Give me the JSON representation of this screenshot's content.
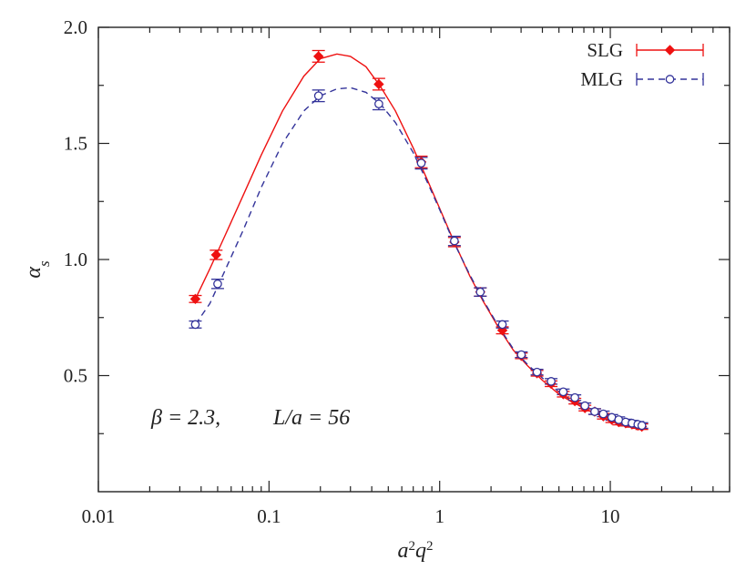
{
  "chart_data": {
    "type": "scatter",
    "title": "",
    "xlabel": "a²q²",
    "ylabel": "αs",
    "xscale": "log",
    "xlim": [
      0.01,
      50
    ],
    "ylim": [
      0.0,
      2.0
    ],
    "xticks": [
      {
        "value": 0.01,
        "label": "0.01"
      },
      {
        "value": 0.1,
        "label": "0.1"
      },
      {
        "value": 1,
        "label": "1"
      },
      {
        "value": 10,
        "label": "10"
      }
    ],
    "yticks": [
      {
        "value": 0.5,
        "label": "0.5"
      },
      {
        "value": 1.0,
        "label": "1.0"
      },
      {
        "value": 1.5,
        "label": "1.5"
      },
      {
        "value": 2.0,
        "label": "2.0"
      }
    ],
    "annotation": {
      "beta": "β = 2.3,",
      "size": "L/a = 56"
    },
    "legend_position": "top-right",
    "series": [
      {
        "name": "SLG",
        "color": "#ee1111",
        "marker": "filled-diamond",
        "line": "solid",
        "x": [
          0.037,
          0.049,
          0.195,
          0.44,
          0.78,
          1.22,
          1.73,
          2.33,
          3.01,
          3.72,
          4.5,
          5.3,
          6.2,
          7.1,
          8.1,
          9.1,
          10.2,
          11.2,
          12.3,
          13.4,
          14.5,
          15.3
        ],
        "y": [
          0.83,
          1.02,
          1.875,
          1.755,
          1.42,
          1.075,
          0.86,
          0.695,
          0.585,
          0.51,
          0.465,
          0.42,
          0.39,
          0.36,
          0.345,
          0.325,
          0.31,
          0.3,
          0.295,
          0.29,
          0.285,
          0.28
        ],
        "err": [
          0.015,
          0.02,
          0.025,
          0.025,
          0.025,
          0.02,
          0.018,
          0.015,
          0.012,
          0.012,
          0.012,
          0.012,
          0.012,
          0.012,
          0.012,
          0.012,
          0.012,
          0.012,
          0.012,
          0.012,
          0.012,
          0.012
        ]
      },
      {
        "name": "MLG",
        "color": "#33339a",
        "marker": "open-circle",
        "line": "dashed",
        "x": [
          0.037,
          0.05,
          0.195,
          0.44,
          0.78,
          1.22,
          1.73,
          2.33,
          3.01,
          3.72,
          4.5,
          5.3,
          6.2,
          7.1,
          8.1,
          9.1,
          10.2,
          11.2,
          12.3,
          13.4,
          14.5,
          15.3
        ],
        "y": [
          0.72,
          0.895,
          1.705,
          1.67,
          1.415,
          1.08,
          0.86,
          0.72,
          0.59,
          0.515,
          0.475,
          0.43,
          0.405,
          0.37,
          0.345,
          0.335,
          0.32,
          0.31,
          0.3,
          0.295,
          0.29,
          0.285
        ],
        "err": [
          0.015,
          0.02,
          0.025,
          0.025,
          0.025,
          0.02,
          0.018,
          0.015,
          0.012,
          0.012,
          0.012,
          0.012,
          0.012,
          0.012,
          0.012,
          0.012,
          0.012,
          0.012,
          0.012,
          0.012,
          0.012,
          0.012
        ]
      }
    ],
    "fits": [
      {
        "series": "SLG",
        "x": [
          0.037,
          0.045,
          0.055,
          0.07,
          0.09,
          0.12,
          0.16,
          0.2,
          0.25,
          0.3,
          0.37,
          0.45,
          0.55,
          0.7,
          0.85,
          1.0,
          1.2,
          1.5,
          1.8,
          2.2,
          2.7,
          3.3,
          4.0,
          5.0,
          6.0,
          7.5,
          9.0,
          11.0,
          13.0,
          15.3
        ],
        "y": [
          0.83,
          0.96,
          1.1,
          1.27,
          1.45,
          1.64,
          1.79,
          1.865,
          1.885,
          1.875,
          1.83,
          1.745,
          1.64,
          1.48,
          1.34,
          1.22,
          1.085,
          0.93,
          0.82,
          0.71,
          0.61,
          0.54,
          0.48,
          0.42,
          0.385,
          0.35,
          0.325,
          0.305,
          0.29,
          0.28
        ]
      },
      {
        "series": "MLG",
        "x": [
          0.037,
          0.045,
          0.055,
          0.07,
          0.09,
          0.12,
          0.16,
          0.2,
          0.25,
          0.3,
          0.37,
          0.45,
          0.55,
          0.7,
          0.85,
          1.0,
          1.2,
          1.5,
          1.8,
          2.2,
          2.7,
          3.3,
          4.0,
          5.0,
          6.0,
          7.5,
          9.0,
          11.0,
          13.0,
          15.3
        ],
        "y": [
          0.72,
          0.81,
          0.95,
          1.12,
          1.31,
          1.5,
          1.64,
          1.705,
          1.735,
          1.74,
          1.72,
          1.67,
          1.59,
          1.46,
          1.33,
          1.215,
          1.08,
          0.935,
          0.825,
          0.715,
          0.615,
          0.545,
          0.49,
          0.43,
          0.39,
          0.355,
          0.33,
          0.31,
          0.295,
          0.285
        ]
      }
    ]
  }
}
